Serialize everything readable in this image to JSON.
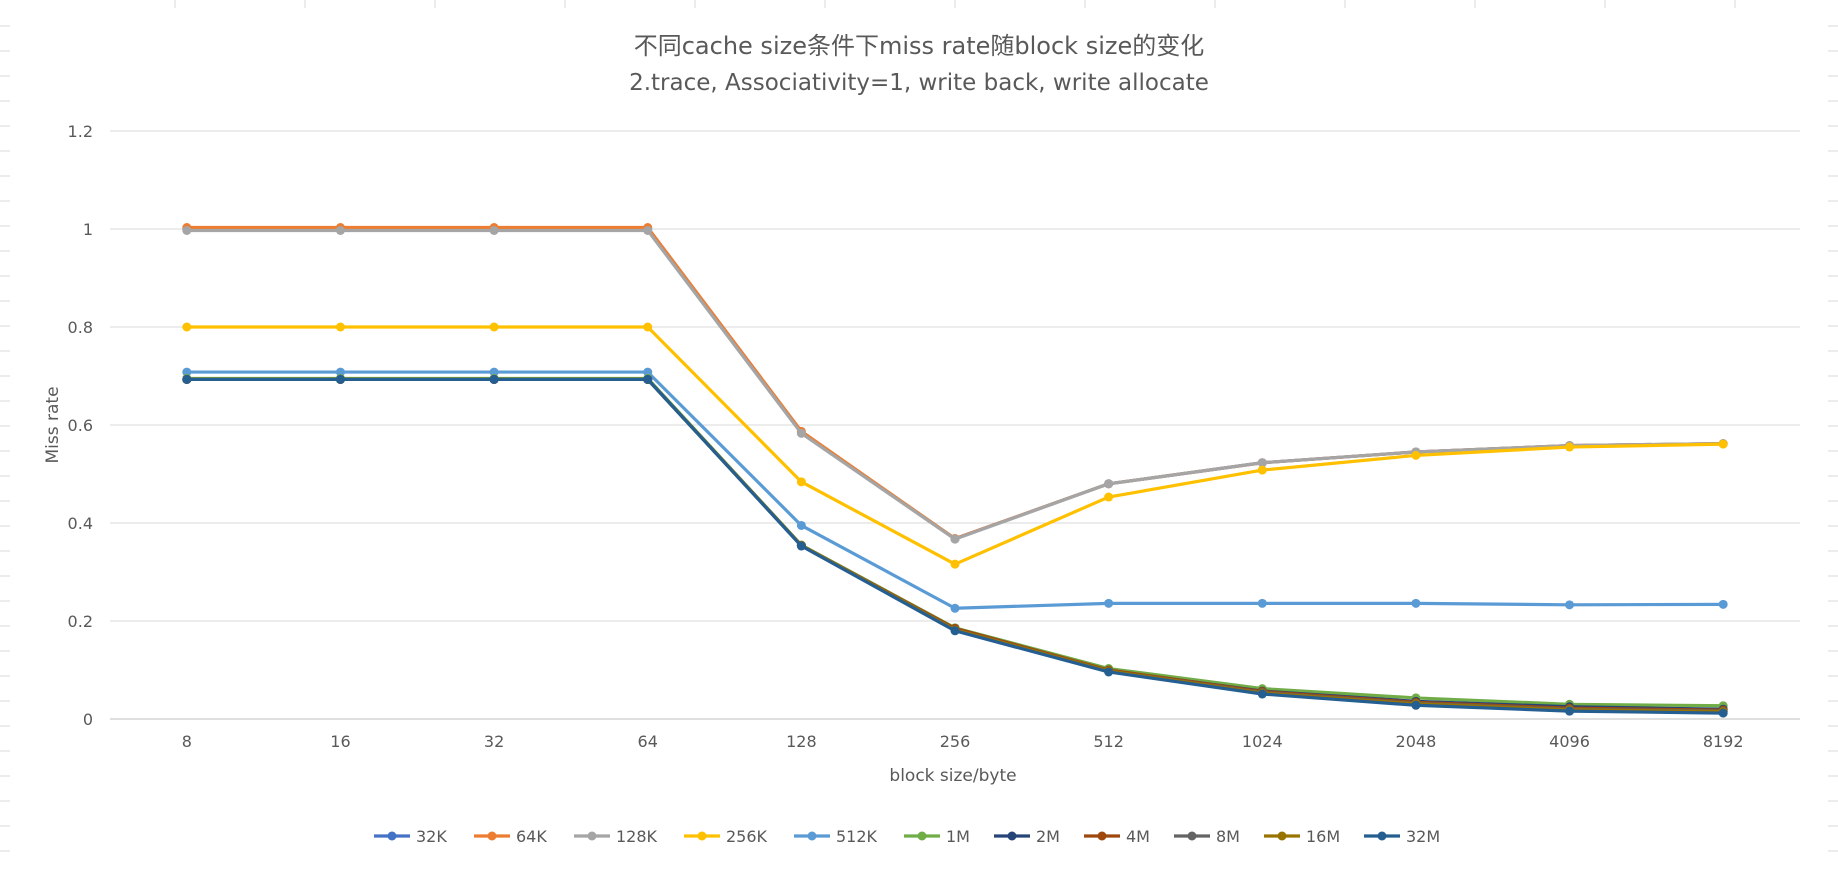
{
  "chart_data": {
    "type": "line",
    "title": "不同cache size条件下miss rate随block size的变化",
    "subtitle": "2.trace, Associativity=1, write back, write allocate",
    "xlabel": "block size/byte",
    "ylabel": "Miss rate",
    "categories": [
      "8",
      "16",
      "32",
      "64",
      "128",
      "256",
      "512",
      "1024",
      "2048",
      "4096",
      "8192"
    ],
    "ylim": [
      0,
      1.2
    ],
    "yticks": [
      "0",
      "0.2",
      "0.4",
      "0.6",
      "0.8",
      "1",
      "1.2"
    ],
    "grid": true,
    "legend_position": "bottom",
    "series": [
      {
        "name": "32K",
        "color": "#4472C4",
        "values": [
          1.0,
          1.0,
          1.0,
          1.0,
          0.585,
          0.368,
          0.48,
          0.523,
          0.545,
          0.558,
          0.562
        ]
      },
      {
        "name": "64K",
        "color": "#ED7D31",
        "values": [
          1.003,
          1.003,
          1.003,
          1.003,
          0.587,
          0.368,
          0.48,
          0.523,
          0.545,
          0.558,
          0.562
        ]
      },
      {
        "name": "128K",
        "color": "#A5A5A5",
        "values": [
          0.997,
          0.997,
          0.997,
          0.997,
          0.583,
          0.367,
          0.48,
          0.523,
          0.545,
          0.558,
          0.562
        ]
      },
      {
        "name": "256K",
        "color": "#FFC000",
        "values": [
          0.8,
          0.8,
          0.8,
          0.8,
          0.484,
          0.316,
          0.453,
          0.508,
          0.538,
          0.555,
          0.561
        ]
      },
      {
        "name": "512K",
        "color": "#5B9BD5",
        "values": [
          0.708,
          0.708,
          0.708,
          0.708,
          0.395,
          0.226,
          0.236,
          0.236,
          0.236,
          0.233,
          0.234
        ]
      },
      {
        "name": "1M",
        "color": "#70AD47",
        "values": [
          0.695,
          0.695,
          0.695,
          0.695,
          0.355,
          0.186,
          0.103,
          0.062,
          0.043,
          0.03,
          0.027
        ]
      },
      {
        "name": "2M",
        "color": "#264478",
        "values": [
          0.693,
          0.693,
          0.693,
          0.693,
          0.354,
          0.183,
          0.099,
          0.057,
          0.036,
          0.025,
          0.02
        ]
      },
      {
        "name": "4M",
        "color": "#9E480E",
        "values": [
          0.693,
          0.693,
          0.693,
          0.693,
          0.354,
          0.185,
          0.1,
          0.056,
          0.034,
          0.022,
          0.018
        ]
      },
      {
        "name": "8M",
        "color": "#636363",
        "values": [
          0.693,
          0.693,
          0.693,
          0.693,
          0.354,
          0.182,
          0.098,
          0.054,
          0.032,
          0.02,
          0.016
        ]
      },
      {
        "name": "16M",
        "color": "#997300",
        "values": [
          0.693,
          0.693,
          0.693,
          0.693,
          0.354,
          0.182,
          0.098,
          0.053,
          0.031,
          0.019,
          0.015
        ]
      },
      {
        "name": "32M",
        "color": "#255E91",
        "values": [
          0.693,
          0.693,
          0.693,
          0.693,
          0.353,
          0.18,
          0.096,
          0.051,
          0.028,
          0.016,
          0.012
        ]
      }
    ]
  }
}
